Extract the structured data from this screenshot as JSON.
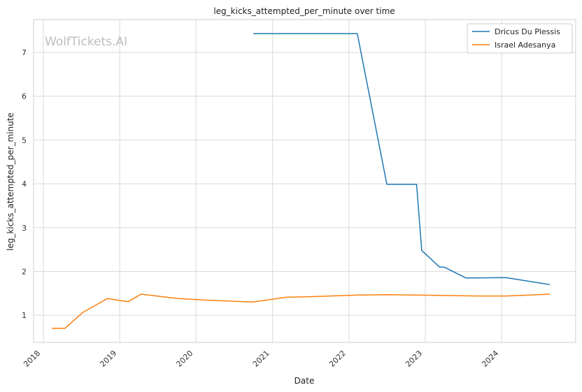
{
  "chart_data": {
    "type": "line",
    "title": "leg_kicks_attempted_per_minute over time",
    "xlabel": "Date",
    "ylabel": "leg_kicks_attempted_per_minute",
    "watermark": "WolfTickets.AI",
    "x_ticks": [
      "2018",
      "2019",
      "2020",
      "2021",
      "2022",
      "2023",
      "2024"
    ],
    "y_ticks": [
      1,
      2,
      3,
      4,
      5,
      6,
      7
    ],
    "xlim": [
      "2017-11-15",
      "2024-12-20"
    ],
    "ylim": [
      0.38,
      7.75
    ],
    "grid": true,
    "legend_position": "top-right",
    "series": [
      {
        "name": "Dricus Du Plessis",
        "color": "#1f77b4",
        "points": [
          [
            "2020-10-01",
            7.43
          ],
          [
            "2022-02-10",
            7.43
          ],
          [
            "2022-07-01",
            3.99
          ],
          [
            "2022-11-20",
            3.99
          ],
          [
            "2022-12-15",
            2.48
          ],
          [
            "2023-03-10",
            2.1
          ],
          [
            "2023-04-01",
            2.1
          ],
          [
            "2023-07-15",
            1.85
          ],
          [
            "2024-01-20",
            1.86
          ],
          [
            "2024-08-18",
            1.7
          ]
        ]
      },
      {
        "name": "Israel Adesanya",
        "color": "#ff7f0e",
        "points": [
          [
            "2018-02-10",
            0.7
          ],
          [
            "2018-04-14",
            0.7
          ],
          [
            "2018-07-07",
            1.06
          ],
          [
            "2018-11-03",
            1.38
          ],
          [
            "2019-02-10",
            1.31
          ],
          [
            "2019-04-13",
            1.48
          ],
          [
            "2019-10-06",
            1.38
          ],
          [
            "2020-03-07",
            1.34
          ],
          [
            "2020-09-27",
            1.3
          ],
          [
            "2021-03-06",
            1.41
          ],
          [
            "2021-06-12",
            1.42
          ],
          [
            "2022-02-12",
            1.46
          ],
          [
            "2022-07-02",
            1.47
          ],
          [
            "2022-11-12",
            1.46
          ],
          [
            "2023-04-08",
            1.45
          ],
          [
            "2023-09-10",
            1.44
          ],
          [
            "2024-01-20",
            1.44
          ],
          [
            "2024-08-18",
            1.48
          ]
        ]
      }
    ]
  }
}
